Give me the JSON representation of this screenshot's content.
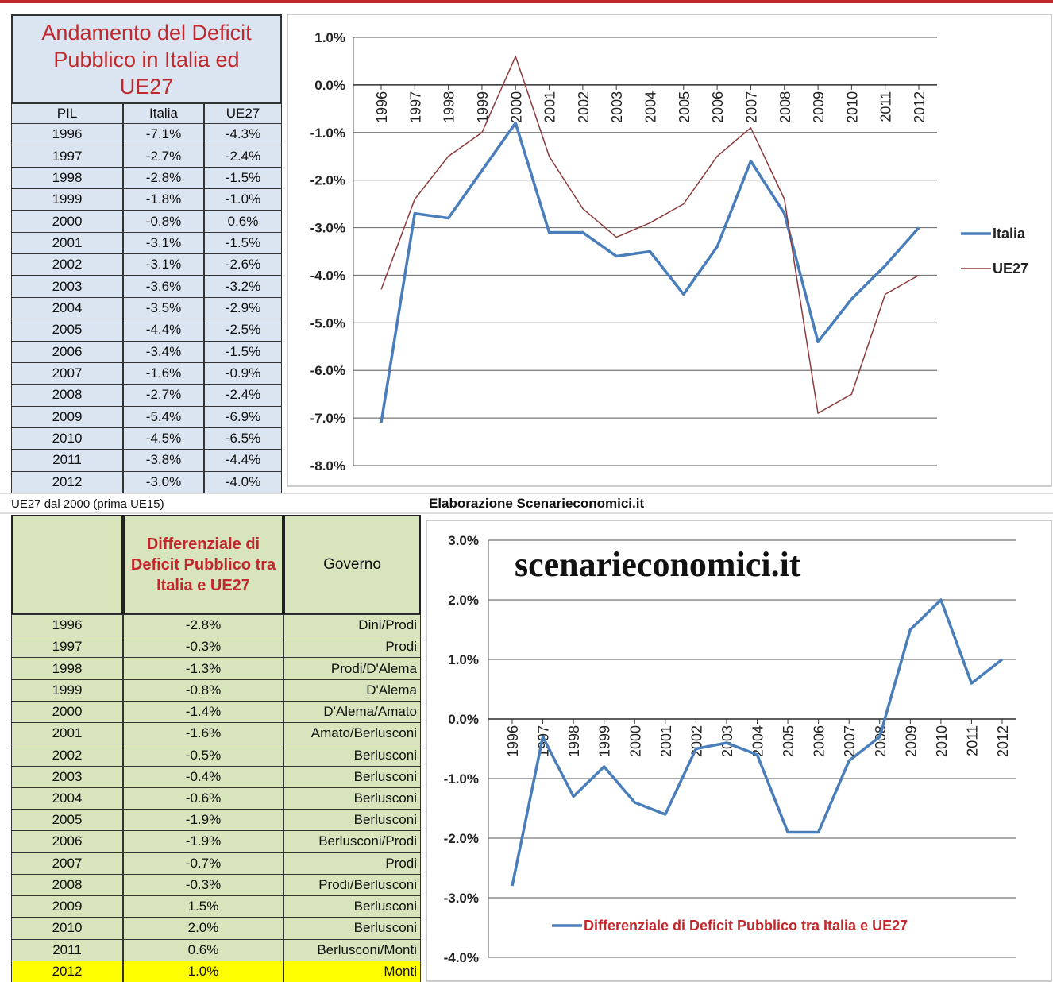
{
  "table1": {
    "title": "Andamento del Deficit Pubblico in Italia ed UE27",
    "header": [
      "PIL",
      "Italia",
      "UE27"
    ],
    "rows": [
      [
        "1996",
        "-7.1%",
        "-4.3%"
      ],
      [
        "1997",
        "-2.7%",
        "-2.4%"
      ],
      [
        "1998",
        "-2.8%",
        "-1.5%"
      ],
      [
        "1999",
        "-1.8%",
        "-1.0%"
      ],
      [
        "2000",
        "-0.8%",
        "0.6%"
      ],
      [
        "2001",
        "-3.1%",
        "-1.5%"
      ],
      [
        "2002",
        "-3.1%",
        "-2.6%"
      ],
      [
        "2003",
        "-3.6%",
        "-3.2%"
      ],
      [
        "2004",
        "-3.5%",
        "-2.9%"
      ],
      [
        "2005",
        "-4.4%",
        "-2.5%"
      ],
      [
        "2006",
        "-3.4%",
        "-1.5%"
      ],
      [
        "2007",
        "-1.6%",
        "-0.9%"
      ],
      [
        "2008",
        "-2.7%",
        "-2.4%"
      ],
      [
        "2009",
        "-5.4%",
        "-6.9%"
      ],
      [
        "2010",
        "-4.5%",
        "-6.5%"
      ],
      [
        "2011",
        "-3.8%",
        "-4.4%"
      ],
      [
        "2012",
        "-3.0%",
        "-4.0%"
      ]
    ]
  },
  "note": "UE27 dal 2000 (prima UE15)",
  "credit": "Elaborazione Scenarieconomici.it",
  "table2": {
    "header_diff": "Differenziale di Deficit Pubblico tra Italia e UE27",
    "header_gov": "Governo",
    "rows": [
      [
        "1996",
        "-2.8%",
        "Dini/Prodi"
      ],
      [
        "1997",
        "-0.3%",
        "Prodi"
      ],
      [
        "1998",
        "-1.3%",
        "Prodi/D'Alema"
      ],
      [
        "1999",
        "-0.8%",
        "D'Alema"
      ],
      [
        "2000",
        "-1.4%",
        "D'Alema/Amato"
      ],
      [
        "2001",
        "-1.6%",
        "Amato/Berlusconi"
      ],
      [
        "2002",
        "-0.5%",
        "Berlusconi"
      ],
      [
        "2003",
        "-0.4%",
        "Berlusconi"
      ],
      [
        "2004",
        "-0.6%",
        "Berlusconi"
      ],
      [
        "2005",
        "-1.9%",
        "Berlusconi"
      ],
      [
        "2006",
        "-1.9%",
        "Berlusconi/Prodi"
      ],
      [
        "2007",
        "-0.7%",
        "Prodi"
      ],
      [
        "2008",
        "-0.3%",
        "Prodi/Berlusconi"
      ],
      [
        "2009",
        "1.5%",
        "Berlusconi"
      ],
      [
        "2010",
        "2.0%",
        "Berlusconi"
      ],
      [
        "2011",
        "0.6%",
        "Berlusconi/Monti"
      ],
      [
        "2012",
        "1.0%",
        "Monti"
      ]
    ]
  },
  "chart_data": [
    {
      "type": "line",
      "legend": "right",
      "grid": true,
      "categories": [
        "1996",
        "1997",
        "1998",
        "1999",
        "2000",
        "2001",
        "2002",
        "2003",
        "2004",
        "2005",
        "2006",
        "2007",
        "2008",
        "2009",
        "2010",
        "2011",
        "2012"
      ],
      "series": [
        {
          "name": "Italia",
          "color": "#4a7ebb",
          "values": [
            -7.1,
            -2.7,
            -2.8,
            -1.8,
            -0.8,
            -3.1,
            -3.1,
            -3.6,
            -3.5,
            -4.4,
            -3.4,
            -1.6,
            -2.7,
            -5.4,
            -4.5,
            -3.8,
            -3.0
          ]
        },
        {
          "name": "UE27",
          "color": "#8c3b3b",
          "values": [
            -4.3,
            -2.4,
            -1.5,
            -1.0,
            0.6,
            -1.5,
            -2.6,
            -3.2,
            -2.9,
            -2.5,
            -1.5,
            -0.9,
            -2.4,
            -6.9,
            -6.5,
            -4.4,
            -4.0
          ]
        }
      ],
      "ylim": [
        -8,
        1
      ],
      "yticks": [
        {
          "value": 1,
          "label": "1.0%"
        },
        {
          "value": 0,
          "label": "0.0%"
        },
        {
          "value": -1,
          "label": "-1.0%"
        },
        {
          "value": -2,
          "label": "-2.0%"
        },
        {
          "value": -3,
          "label": "-3.0%"
        },
        {
          "value": -4,
          "label": "-4.0%"
        },
        {
          "value": -5,
          "label": "-5.0%"
        },
        {
          "value": -6,
          "label": "-6.0%"
        },
        {
          "value": -7,
          "label": "-7.0%"
        },
        {
          "value": -8,
          "label": "-8.0%"
        }
      ]
    },
    {
      "type": "line",
      "legend": "bottom",
      "grid": true,
      "watermark": "scenarieconomici.it",
      "categories": [
        "1996",
        "1997",
        "1998",
        "1999",
        "2000",
        "2001",
        "2002",
        "2003",
        "2004",
        "2005",
        "2006",
        "2007",
        "2008",
        "2009",
        "2010",
        "2011",
        "2012"
      ],
      "series": [
        {
          "name": "Differenziale di Deficit Pubblico tra Italia e UE27",
          "color": "#4a7ebb",
          "values": [
            -2.8,
            -0.3,
            -1.3,
            -0.8,
            -1.4,
            -1.6,
            -0.5,
            -0.4,
            -0.6,
            -1.9,
            -1.9,
            -0.7,
            -0.3,
            1.5,
            2.0,
            0.6,
            1.0
          ]
        }
      ],
      "ylim": [
        -4,
        3
      ],
      "yticks": [
        {
          "value": 3,
          "label": "3.0%"
        },
        {
          "value": 2,
          "label": "2.0%"
        },
        {
          "value": 1,
          "label": "1.0%"
        },
        {
          "value": 0,
          "label": "0.0%"
        },
        {
          "value": -1,
          "label": "-1.0%"
        },
        {
          "value": -2,
          "label": "-2.0%"
        },
        {
          "value": -3,
          "label": "-3.0%"
        },
        {
          "value": -4,
          "label": "-4.0%"
        }
      ]
    }
  ]
}
